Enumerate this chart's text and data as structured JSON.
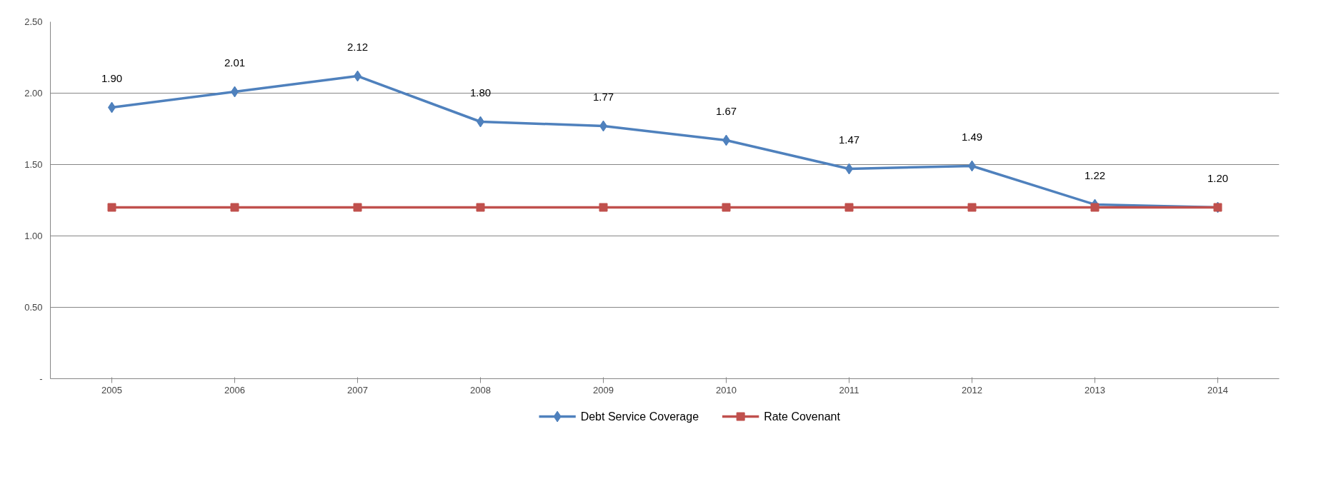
{
  "chart_data": {
    "type": "line",
    "categories": [
      "2005",
      "2006",
      "2007",
      "2008",
      "2009",
      "2010",
      "2011",
      "2012",
      "2013",
      "2014"
    ],
    "series": [
      {
        "name": "Debt Service Coverage",
        "color": "#4f81bd",
        "marker": "diamond",
        "values": [
          1.9,
          2.01,
          2.12,
          1.8,
          1.77,
          1.67,
          1.47,
          1.49,
          1.22,
          1.2
        ],
        "value_labels": [
          "1.90",
          "2.01",
          "2.12",
          "1.80",
          "1.77",
          "1.67",
          "1.47",
          "1.49",
          "1.22",
          "1.20"
        ]
      },
      {
        "name": "Rate Covenant",
        "color": "#c0504d",
        "marker": "square",
        "values": [
          1.2,
          1.2,
          1.2,
          1.2,
          1.2,
          1.2,
          1.2,
          1.2,
          1.2,
          1.2
        ]
      }
    ],
    "ylim": [
      0,
      2.5
    ],
    "yticks": [
      {
        "value": 0,
        "label": "-"
      },
      {
        "value": 0.5,
        "label": "0.50"
      },
      {
        "value": 1.0,
        "label": "1.00"
      },
      {
        "value": 1.5,
        "label": "1.50"
      },
      {
        "value": 2.0,
        "label": "2.00"
      },
      {
        "value": 2.5,
        "label": "2.50"
      }
    ],
    "grid": "y",
    "legend": "bottom",
    "line_style": "solid"
  }
}
